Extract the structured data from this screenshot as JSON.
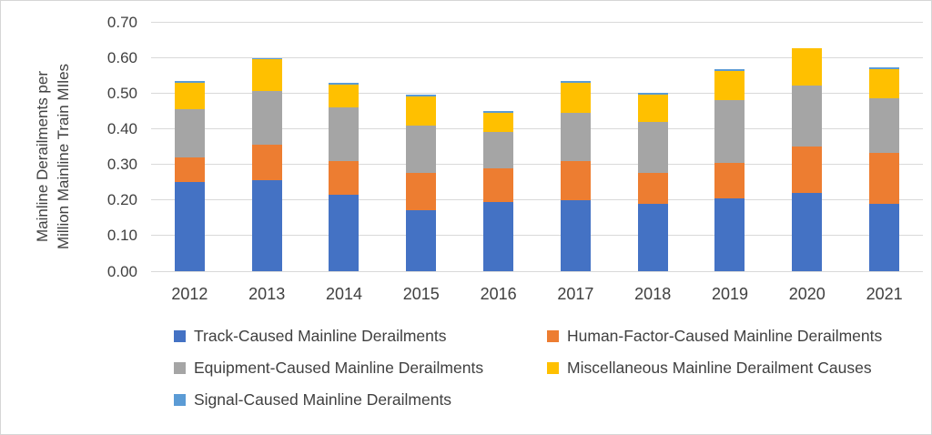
{
  "colors": {
    "track": "#4472C4",
    "human_factor": "#ED7D31",
    "equipment": "#A5A5A5",
    "miscellaneous": "#FFC000",
    "signal": "#5B9BD5",
    "gridline": "#D9D9D9",
    "text": "#404040"
  },
  "y_axis": {
    "title_line1": "Mainline Derailments per",
    "title_line2": "Million Mainline Train MIles"
  },
  "chart_data": {
    "type": "bar",
    "stacked": true,
    "title": "",
    "xlabel": "",
    "ylabel": "Mainline Derailments per Million Mainline Train MIles",
    "ylim": [
      0,
      0.7
    ],
    "ytick_step": 0.1,
    "ytick_labels": [
      "0.00",
      "0.10",
      "0.20",
      "0.30",
      "0.40",
      "0.50",
      "0.60",
      "0.70"
    ],
    "grid": true,
    "legend_position": "bottom",
    "categories": [
      "2012",
      "2013",
      "2014",
      "2015",
      "2016",
      "2017",
      "2018",
      "2019",
      "2020",
      "2021"
    ],
    "series": [
      {
        "name": "Track-Caused Mainline Derailments",
        "color": "#4472C4",
        "values": [
          0.25,
          0.255,
          0.215,
          0.17,
          0.195,
          0.2,
          0.19,
          0.205,
          0.22,
          0.19
        ]
      },
      {
        "name": "Human-Factor-Caused Mainline Derailments",
        "color": "#ED7D31",
        "values": [
          0.07,
          0.1,
          0.095,
          0.105,
          0.095,
          0.11,
          0.085,
          0.098,
          0.13,
          0.143
        ]
      },
      {
        "name": "Equipment-Caused Mainline Derailments",
        "color": "#A5A5A5",
        "values": [
          0.135,
          0.15,
          0.15,
          0.135,
          0.1,
          0.135,
          0.145,
          0.178,
          0.17,
          0.153
        ]
      },
      {
        "name": "Miscellaneous Mainline Derailment Causes",
        "color": "#FFC000",
        "values": [
          0.073,
          0.09,
          0.065,
          0.08,
          0.055,
          0.085,
          0.075,
          0.082,
          0.105,
          0.082
        ]
      },
      {
        "name": "Signal-Caused Mainline Derailments",
        "color": "#5B9BD5",
        "values": [
          0.005,
          0.004,
          0.005,
          0.007,
          0.005,
          0.005,
          0.005,
          0.004,
          0.0,
          0.005
        ]
      }
    ]
  },
  "legend": {
    "items": [
      {
        "label": "Track-Caused Mainline Derailments",
        "color": "#4472C4"
      },
      {
        "label": "Human-Factor-Caused Mainline Derailments",
        "color": "#ED7D31"
      },
      {
        "label": "Equipment-Caused Mainline Derailments",
        "color": "#A5A5A5"
      },
      {
        "label": "Miscellaneous Mainline Derailment Causes",
        "color": "#FFC000"
      },
      {
        "label": "Signal-Caused Mainline Derailments",
        "color": "#5B9BD5"
      }
    ]
  }
}
